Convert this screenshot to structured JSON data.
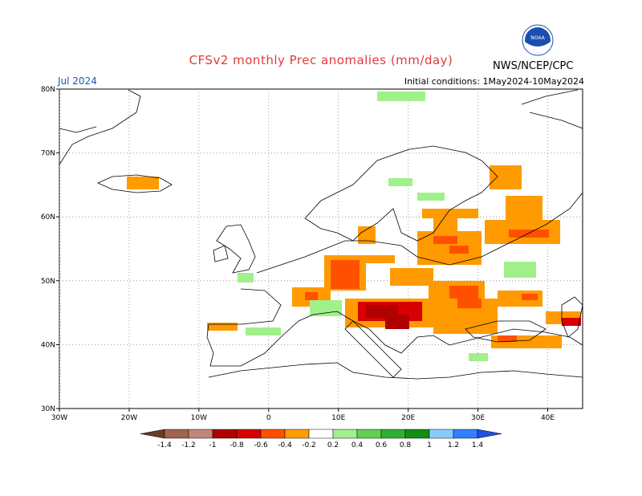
{
  "title": "CFSv2 monthly Prec anomalies (mm/day)",
  "org": "NWS/NCEP/CPC",
  "logo_text": "NOAA",
  "month": "Jul 2024",
  "initial_conditions": "Initial conditions: 1May2024-10May2024",
  "lon_labels": [
    "30W",
    "20W",
    "10W",
    "0",
    "10E",
    "20E",
    "30E",
    "40E"
  ],
  "lon_values": [
    -30,
    -20,
    -10,
    0,
    10,
    20,
    30,
    40
  ],
  "lat_labels": [
    "80N",
    "70N",
    "60N",
    "50N",
    "40N",
    "30N"
  ],
  "lat_values": [
    80,
    70,
    60,
    50,
    40,
    30
  ],
  "colorbar": {
    "labels": [
      "-1.4",
      "-1.2",
      "-1",
      "-0.8",
      "-0.6",
      "-0.4",
      "-0.2",
      "0.2",
      "0.4",
      "0.6",
      "0.8",
      "1",
      "1.2",
      "1.4"
    ],
    "colors": [
      "#6b3a2a",
      "#a0644f",
      "#c08878",
      "#b00000",
      "#d80000",
      "#ff5000",
      "#ff9a00",
      "#ffffff",
      "#a0f08c",
      "#60d050",
      "#30b030",
      "#109010",
      "#88ccff",
      "#3080ff",
      "#2050e0"
    ]
  },
  "colors": {
    "title": "#e23a3a",
    "month": "#2255aa",
    "land": "#ffffff",
    "coast": "#000000"
  }
}
